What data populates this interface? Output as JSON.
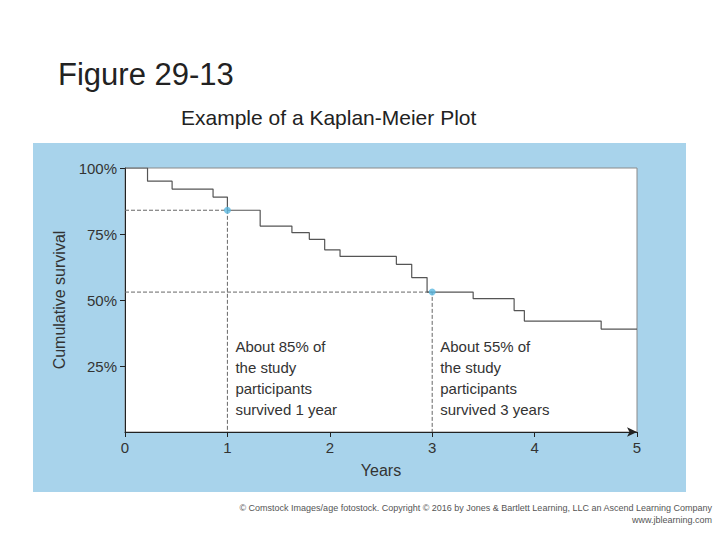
{
  "title": "Figure 29-13",
  "subtitle": "Example of a Kaplan-Meier Plot",
  "credit": [
    "© Comstock Images/age fotostock. Copyright © 2016 by Jones & Bartlett Learning, LLC an Ascend Learning Company",
    "www.jblearning.com"
  ],
  "chart_data": {
    "type": "line",
    "line_style": "step",
    "color": "#555555",
    "x_label": "Years",
    "y_label": "Cumulative survival",
    "x": [
      0,
      0.22,
      0.46,
      0.86,
      1.0,
      1.32,
      1.63,
      1.8,
      1.95,
      2.1,
      2.65,
      2.8,
      2.95,
      3.4,
      3.8,
      3.9,
      4.65,
      5
    ],
    "values": [
      100,
      95,
      92,
      89,
      84,
      78,
      75.5,
      73,
      69,
      66.5,
      63.5,
      58.5,
      53,
      50.5,
      46,
      42,
      39,
      39
    ],
    "xlim": [
      0,
      5
    ],
    "xticks": [
      0,
      1,
      2,
      3,
      4,
      5
    ],
    "ylim": [
      0,
      100
    ],
    "yticks": [
      {
        "value": 25,
        "label": "25%"
      },
      {
        "value": 50,
        "label": "50%"
      },
      {
        "value": 75,
        "label": "75%"
      },
      {
        "value": 100,
        "label": "100%"
      }
    ],
    "grid": false,
    "annotations": [
      {
        "x": 1,
        "y": 84,
        "text": "About 85% of\nthe study\nparticipants\nsurvived 1 year"
      },
      {
        "x": 3,
        "y": 53,
        "text": "About 55% of\nthe study\nparticipants\nsurvived 3 years"
      }
    ]
  }
}
